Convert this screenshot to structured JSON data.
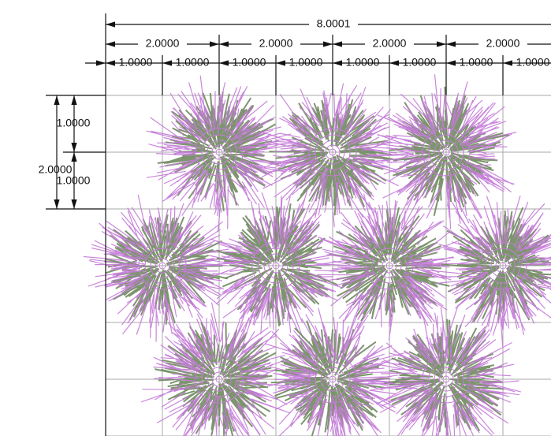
{
  "dimensions": {
    "top_total": "8.0001",
    "top_halves": [
      "2.0000",
      "2.0000",
      "2.0000",
      "2.0000"
    ],
    "top_units": [
      "1.0000",
      "1.0000",
      "1.0000",
      "1.0000",
      "1.0000",
      "1.0000",
      "1.0000",
      "1.0000"
    ],
    "left_total": "2.0000",
    "left_units": [
      "1.0000",
      "1.0000"
    ]
  }
}
